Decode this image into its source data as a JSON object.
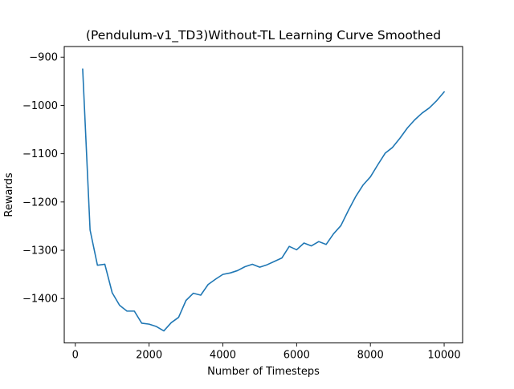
{
  "chart_data": {
    "type": "line",
    "title": "(Pendulum-v1_TD3)Without-TL Learning Curve Smoothed",
    "xlabel": "Number of Timesteps",
    "ylabel": "Rewards",
    "xlim": [
      -300,
      10500
    ],
    "ylim": [
      -1492,
      -878
    ],
    "xticks": [
      0,
      2000,
      4000,
      6000,
      8000,
      10000
    ],
    "xtick_labels": [
      "0",
      "2000",
      "4000",
      "6000",
      "8000",
      "10000"
    ],
    "yticks": [
      -900,
      -1000,
      -1100,
      -1200,
      -1300,
      -1400
    ],
    "ytick_labels": [
      "−900",
      "−1000",
      "−1100",
      "−1200",
      "−1300",
      "−1400"
    ],
    "grid": false,
    "legend": "none",
    "series": [
      {
        "color": "#1f77b4",
        "x": [
          200,
          400,
          600,
          800,
          1000,
          1200,
          1400,
          1600,
          1800,
          2000,
          2200,
          2400,
          2600,
          2800,
          3000,
          3200,
          3400,
          3600,
          3800,
          4000,
          4200,
          4400,
          4600,
          4800,
          5000,
          5200,
          5400,
          5600,
          5800,
          6000,
          6200,
          6400,
          6600,
          6800,
          7000,
          7200,
          7400,
          7600,
          7800,
          8000,
          8200,
          8400,
          8600,
          8800,
          9000,
          9200,
          9400,
          9600,
          9800,
          10000
        ],
        "y": [
          -925,
          -1258,
          -1331,
          -1329,
          -1388,
          -1414,
          -1426,
          -1426,
          -1451,
          -1453,
          -1458,
          -1467,
          -1450,
          -1439,
          -1404,
          -1389,
          -1393,
          -1371,
          -1360,
          -1350,
          -1347,
          -1342,
          -1334,
          -1329,
          -1335,
          -1330,
          -1323,
          -1316,
          -1292,
          -1299,
          -1285,
          -1291,
          -1282,
          -1288,
          -1266,
          -1249,
          -1218,
          -1189,
          -1165,
          -1148,
          -1123,
          -1099,
          -1087,
          -1068,
          -1047,
          -1030,
          -1016,
          -1005,
          -990,
          -972
        ]
      }
    ]
  }
}
